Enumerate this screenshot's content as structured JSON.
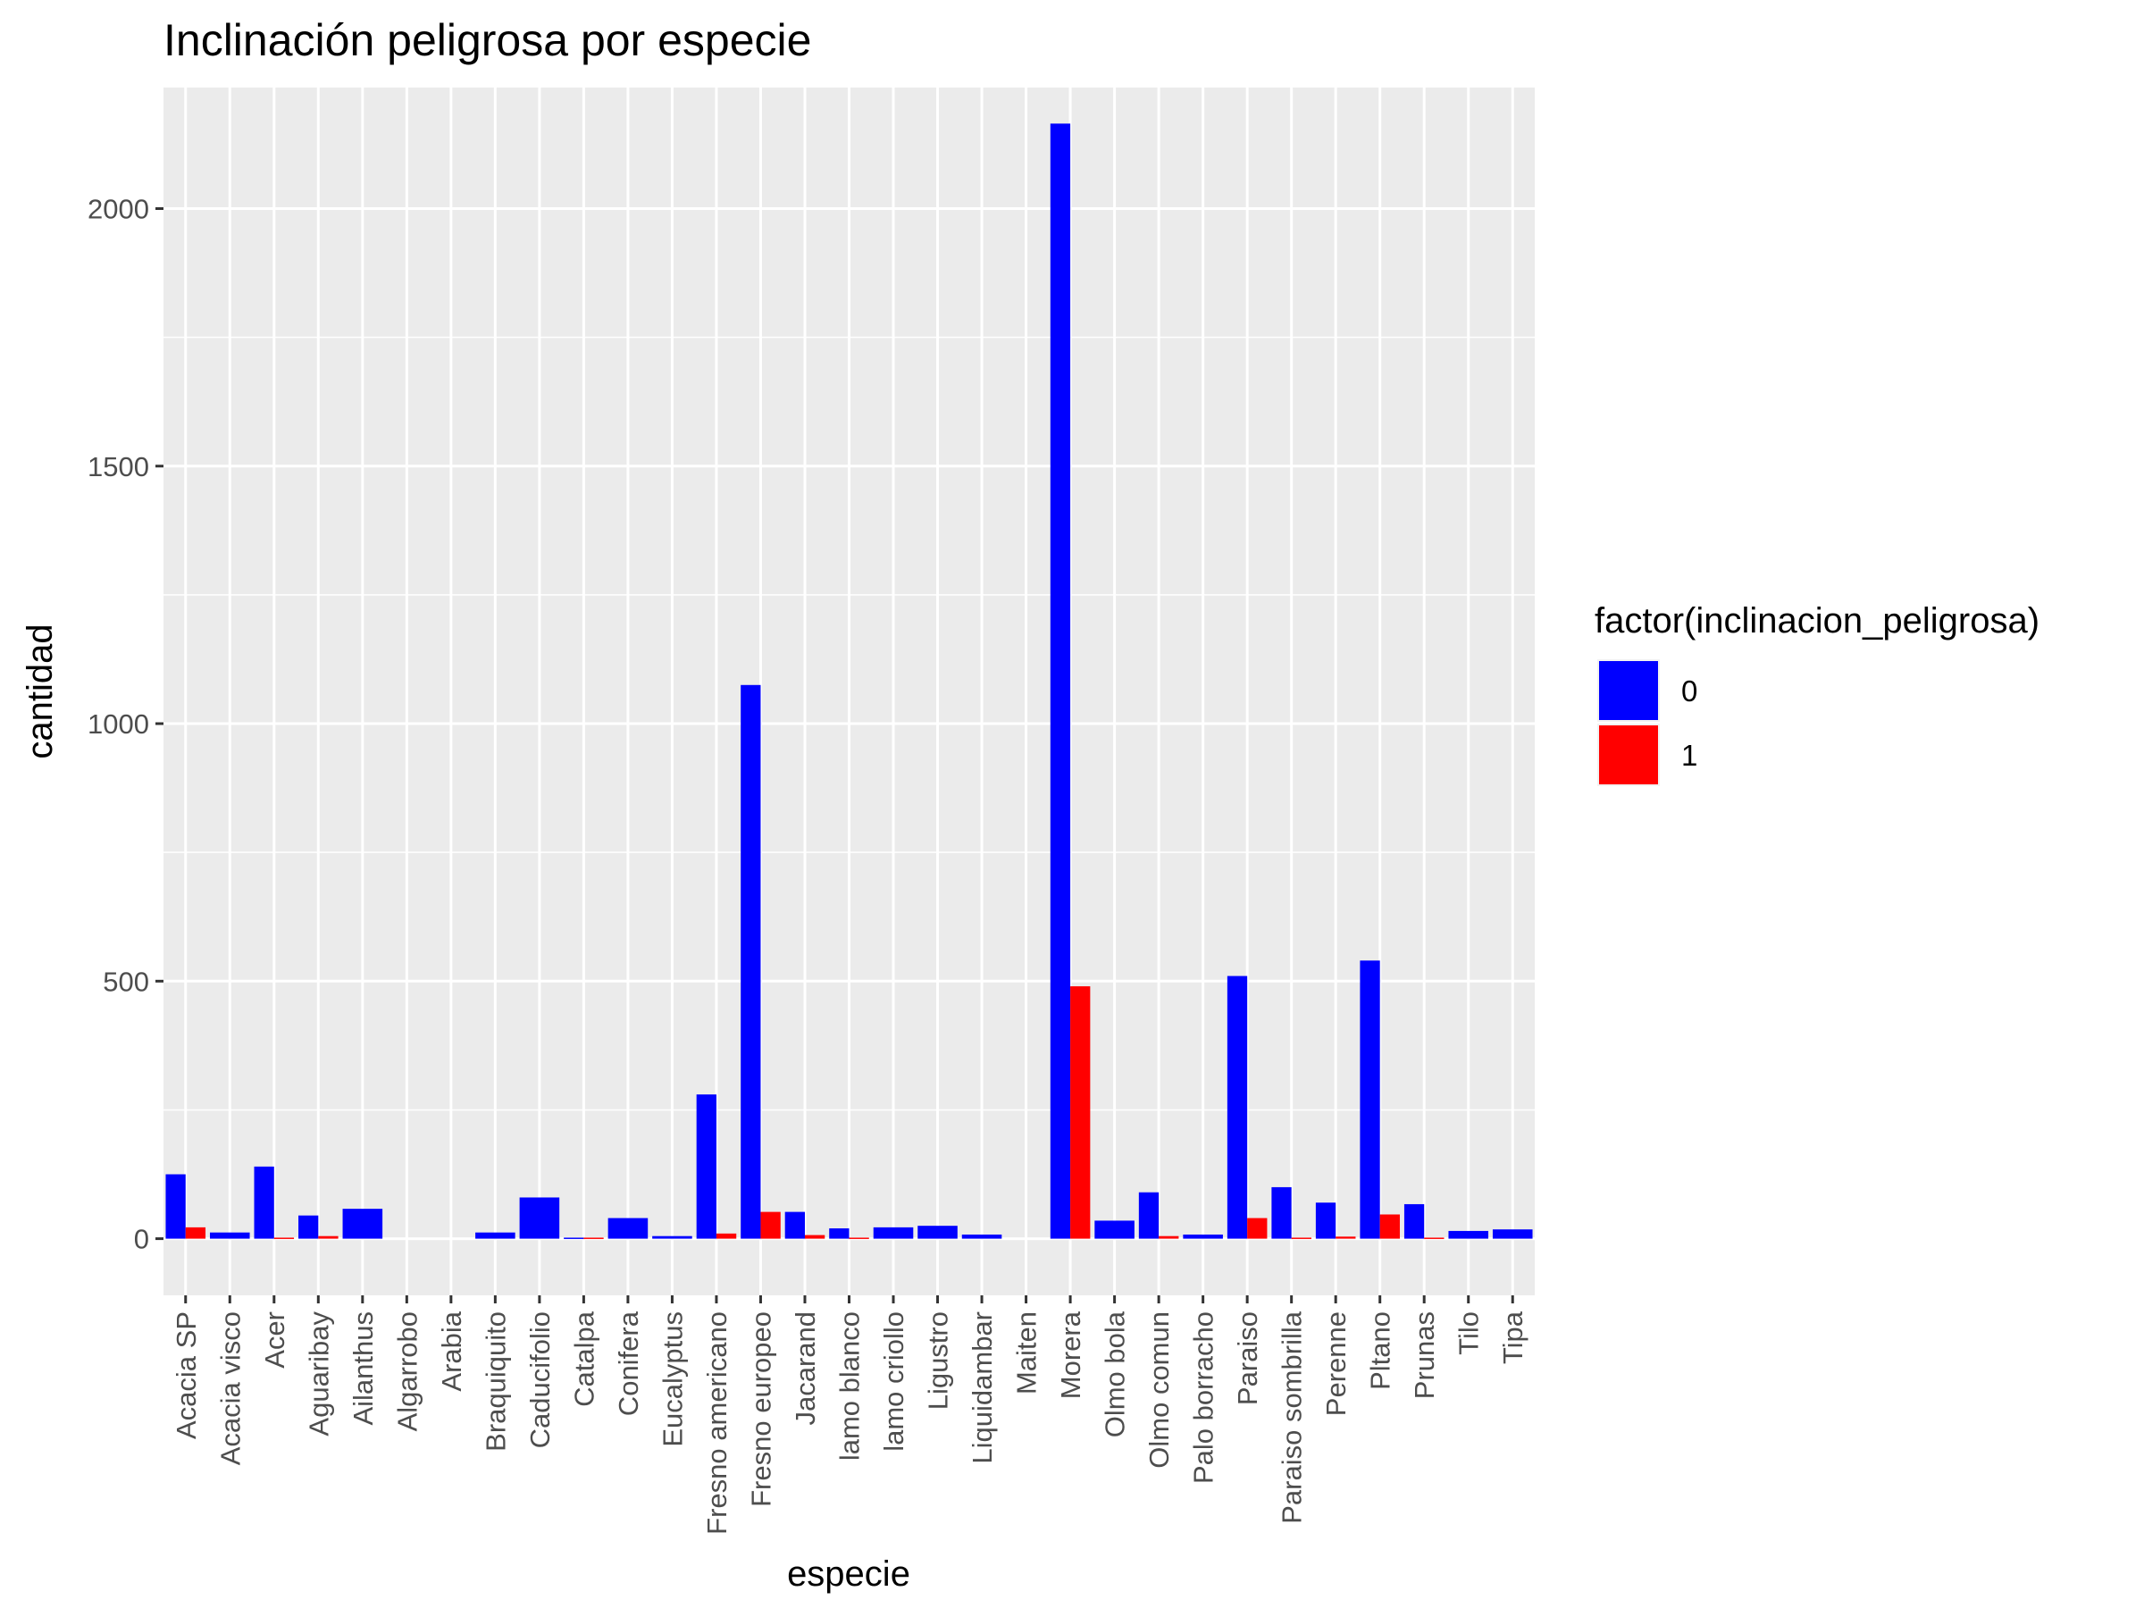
{
  "chart_data": {
    "type": "bar",
    "title": "Inclinación peligrosa por especie",
    "xlabel": "especie",
    "ylabel": "cantidad",
    "ylim": [
      -110,
      2235
    ],
    "yticks": [
      0,
      500,
      1000,
      1500,
      2000
    ],
    "grid": true,
    "legend_position": "right",
    "legend_title": "factor(inclinacion_peligrosa)",
    "categories": [
      "Acacia SP",
      "Acacia visco",
      "Acer",
      "Aguaribay",
      "Ailanthus",
      "Algarrobo",
      "Arabia",
      "Braquiquito",
      "Caducifolio",
      "Catalpa",
      "Conifera",
      "Eucalyptus",
      "Fresno americano",
      "Fresno europeo",
      "Jacarand",
      "lamo blanco",
      "lamo criollo",
      "Ligustro",
      "Liquidambar",
      "Maiten",
      "Morera",
      "Olmo bola",
      "Olmo comun",
      "Palo borracho",
      "Paraiso",
      "Paraiso sombrilla",
      "Perenne",
      "Pltano",
      "Prunas",
      "Tilo",
      "Tipa"
    ],
    "bar_layout": [
      "dodge",
      "full",
      "dodge",
      "dodge",
      "full",
      "full",
      "full",
      "full",
      "full",
      "dodge",
      "full",
      "full",
      "dodge",
      "dodge",
      "dodge",
      "dodge",
      "full",
      "full",
      "full",
      "full",
      "dodge",
      "full",
      "dodge",
      "full",
      "dodge",
      "dodge",
      "dodge",
      "dodge",
      "dodge",
      "full",
      "full"
    ],
    "series": [
      {
        "name": "0",
        "color": "#0000ff",
        "values": [
          125,
          12,
          140,
          45,
          58,
          0,
          0,
          12,
          80,
          2,
          40,
          5,
          280,
          1075,
          52,
          20,
          22,
          25,
          8,
          0,
          2165,
          35,
          90,
          8,
          510,
          100,
          70,
          540,
          67,
          15,
          18
        ]
      },
      {
        "name": "1",
        "color": "#ff0000",
        "values": [
          22,
          0,
          2,
          5,
          0,
          0,
          0,
          0,
          0,
          2,
          0,
          0,
          10,
          52,
          7,
          2,
          0,
          0,
          0,
          0,
          490,
          0,
          5,
          0,
          40,
          2,
          4,
          47,
          2,
          0,
          0
        ]
      }
    ]
  }
}
